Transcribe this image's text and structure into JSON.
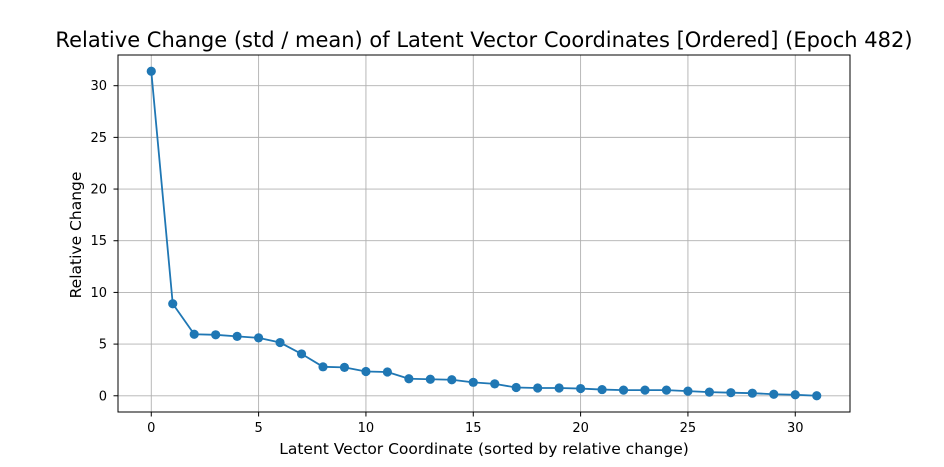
{
  "chart_data": {
    "type": "line",
    "title": "Relative Change (std / mean) of Latent Vector Coordinates [Ordered] (Epoch 482)",
    "xlabel": "Latent Vector Coordinate (sorted by relative change)",
    "ylabel": "Relative Change",
    "xlim": [
      -1.55,
      32.55
    ],
    "ylim": [
      -1.57,
      32.97
    ],
    "xticks": [
      0,
      5,
      10,
      15,
      20,
      25,
      30
    ],
    "yticks": [
      0,
      5,
      10,
      15,
      20,
      25,
      30
    ],
    "grid": true,
    "marker": "circle",
    "color": "#1f77b4",
    "series": [
      {
        "x": [
          0,
          1,
          2,
          3,
          4,
          5,
          6,
          7,
          8,
          9,
          10,
          11,
          12,
          13,
          14,
          15,
          16,
          17,
          18,
          19,
          20,
          21,
          22,
          23,
          24,
          25,
          26,
          27,
          28,
          29,
          30,
          31
        ],
        "values": [
          31.4,
          8.9,
          5.95,
          5.9,
          5.75,
          5.6,
          5.15,
          4.05,
          2.8,
          2.75,
          2.35,
          2.3,
          1.65,
          1.6,
          1.55,
          1.3,
          1.15,
          0.8,
          0.75,
          0.75,
          0.7,
          0.6,
          0.55,
          0.55,
          0.55,
          0.45,
          0.35,
          0.3,
          0.25,
          0.15,
          0.1,
          0.0
        ]
      }
    ]
  }
}
